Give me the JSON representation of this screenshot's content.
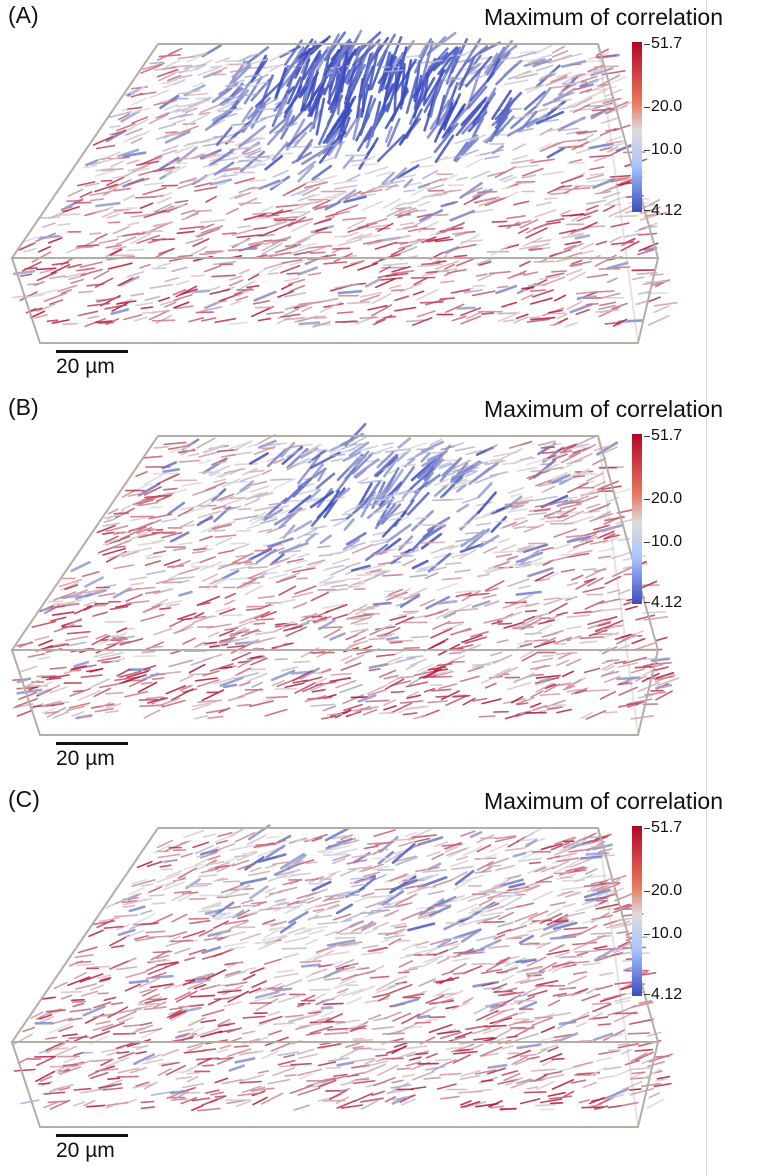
{
  "panels": [
    {
      "label": "(A)",
      "colorbar": {
        "title": "Maximum of correlation",
        "max": "51.7",
        "mid_high": "20.0",
        "mid_low": "10.0",
        "min": "4.12"
      },
      "scale_bar": "20 µm"
    },
    {
      "label": "(B)",
      "colorbar": {
        "title": "Maximum of correlation",
        "max": "51.7",
        "mid_high": "20.0",
        "mid_low": "10.0",
        "min": "4.12"
      },
      "scale_bar": "20 µm"
    },
    {
      "label": "(C)",
      "colorbar": {
        "title": "Maximum of correlation",
        "max": "51.7",
        "mid_high": "20.0",
        "mid_low": "10.0",
        "min": "4.12"
      },
      "scale_bar": "20 µm"
    }
  ],
  "colors": {
    "high": "#b40426",
    "mid": "#dddcdc",
    "low": "#3b4cc0",
    "box_edge": "#b5aea4"
  }
}
